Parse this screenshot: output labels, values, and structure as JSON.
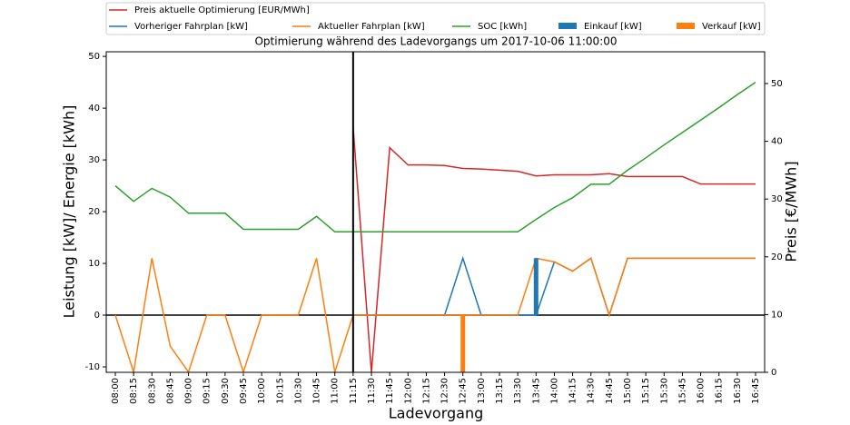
{
  "chart_data": {
    "type": "line",
    "title": "Optimierung während des Ladevorgangs um 2017-10-06 11:00:00",
    "xlabel": "Ladevorgang",
    "ylabel": "Leistung [kW]/ Energie [kWh]",
    "y2label": "Preis [€/MWh]",
    "categories": [
      "08:00",
      "08:15",
      "08:30",
      "08:45",
      "09:00",
      "09:15",
      "09:30",
      "09:45",
      "10:00",
      "10:15",
      "10:30",
      "10:45",
      "11:00",
      "11:15",
      "11:30",
      "11:45",
      "12:00",
      "12:15",
      "12:30",
      "12:45",
      "13:00",
      "13:15",
      "13:30",
      "13:45",
      "14:00",
      "14:15",
      "14:30",
      "14:45",
      "15:00",
      "15:15",
      "15:30",
      "15:45",
      "16:00",
      "16:15",
      "16:30",
      "16:45"
    ],
    "ylim": [
      -11.05,
      50.9
    ],
    "yticks": [
      -10,
      0,
      10,
      20,
      30,
      40,
      50
    ],
    "y2lim": [
      0,
      55.5
    ],
    "y2ticks": [
      0,
      10,
      20,
      30,
      40,
      50
    ],
    "vline_category": 13,
    "series": [
      {
        "name": "Preis aktuelle Optimierung [EUR/MWh]",
        "color": "#d62728",
        "axis": "y2",
        "style": "line",
        "values": [
          null,
          null,
          null,
          null,
          null,
          null,
          null,
          null,
          null,
          null,
          null,
          null,
          null,
          42.5,
          0,
          38.9,
          35.9,
          35.9,
          35.8,
          35.3,
          35.2,
          35.0,
          34.8,
          34.0,
          34.2,
          34.2,
          34.2,
          34.4,
          33.9,
          33.9,
          33.9,
          33.9,
          32.6,
          32.6,
          32.6,
          32.6
        ]
      },
      {
        "name": "Vorheriger Fahrplan [kW]",
        "color": "#1f77b4",
        "style": "line",
        "values": [
          null,
          null,
          null,
          null,
          null,
          null,
          null,
          null,
          null,
          null,
          null,
          null,
          null,
          0,
          0,
          0,
          0,
          0,
          0,
          11,
          0,
          0,
          0,
          0,
          10.3,
          8.5,
          11,
          0,
          11,
          11,
          11,
          11,
          11,
          11,
          11,
          11
        ]
      },
      {
        "name": "Aktueller Fahrplan [kW]",
        "color": "#ff7f0e",
        "style": "line",
        "values": [
          0,
          -11,
          11,
          -6,
          -11,
          0,
          0,
          -11,
          0,
          0,
          0,
          11,
          -11,
          0,
          0,
          0,
          0,
          0,
          0,
          0,
          0,
          0,
          0,
          11,
          10.3,
          8.5,
          11,
          0,
          11,
          11,
          11,
          11,
          11,
          11,
          11,
          11
        ]
      },
      {
        "name": "SOC [kWh]",
        "color": "#2ca02c",
        "style": "line",
        "values": [
          25,
          22,
          24.5,
          22.8,
          19.7,
          19.7,
          19.7,
          16.6,
          16.6,
          16.6,
          16.6,
          19.1,
          16.1,
          16.1,
          16.1,
          16.1,
          16.1,
          16.1,
          16.1,
          16.1,
          16.1,
          16.1,
          16.1,
          18.5,
          20.8,
          22.7,
          25.3,
          25.3,
          28,
          30.4,
          32.9,
          35.3,
          37.7,
          40.1,
          42.6,
          45
        ]
      },
      {
        "name": "Einkauf [kW]",
        "color": "#1f77b4",
        "style": "bar",
        "values": [
          null,
          null,
          null,
          null,
          null,
          null,
          null,
          null,
          null,
          null,
          null,
          null,
          null,
          null,
          null,
          null,
          null,
          null,
          null,
          null,
          null,
          null,
          null,
          11,
          null,
          null,
          null,
          null,
          null,
          null,
          null,
          null,
          null,
          null,
          null,
          null
        ]
      },
      {
        "name": "Verkauf [kW]",
        "color": "#ff7f0e",
        "style": "bar",
        "values": [
          null,
          null,
          null,
          null,
          null,
          null,
          null,
          null,
          null,
          null,
          null,
          null,
          null,
          null,
          null,
          null,
          null,
          null,
          null,
          -11,
          null,
          null,
          null,
          null,
          null,
          null,
          null,
          null,
          null,
          null,
          null,
          null,
          null,
          null,
          null,
          null
        ]
      }
    ]
  }
}
